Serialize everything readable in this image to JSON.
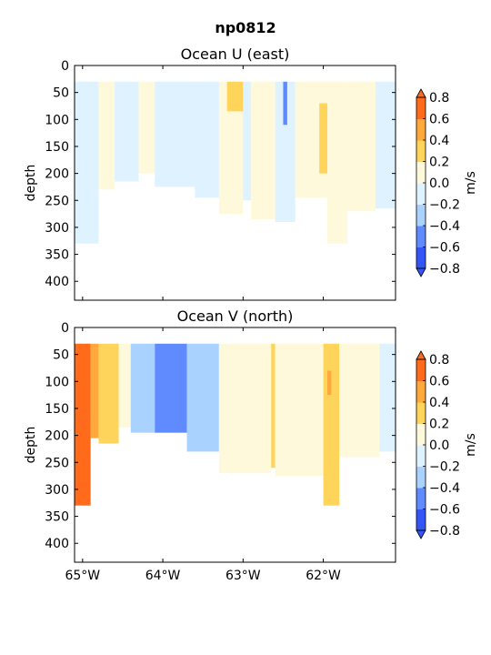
{
  "figure": {
    "title": "np0812"
  },
  "colors": [
    "#3355f5",
    "#5f8bff",
    "#a9d2ff",
    "#def2ff",
    "#fff9dc",
    "#ffd45b",
    "#ffa83b",
    "#ff6b1b"
  ],
  "chart_data": [
    {
      "type": "heatmap",
      "title": "Ocean U (east)",
      "xlabel": "",
      "ylabel": "depth",
      "xlim": [
        -65.1,
        -61.1
      ],
      "ylim": [
        435,
        0
      ],
      "xticks": [
        -65,
        -64,
        -63,
        -62
      ],
      "xticklabels": [
        "65°W",
        "64°W",
        "63°W",
        "62°W"
      ],
      "yticks": [
        0,
        50,
        100,
        150,
        200,
        250,
        300,
        350,
        400
      ],
      "yticklabels": [
        "0",
        "50",
        "100",
        "150",
        "200",
        "250",
        "300",
        "350",
        "400"
      ],
      "depth_top": 30,
      "colorbar": {
        "label": "m/s",
        "levels": [
          -0.8,
          -0.6,
          -0.4,
          -0.2,
          0.0,
          0.2,
          0.4,
          0.6,
          0.8
        ],
        "ticklabels": [
          "0.8",
          "0.6",
          "0.4",
          "0.2",
          "0.0",
          "−0.2",
          "−0.4",
          "−0.6",
          "−0.8"
        ],
        "extend": "both"
      },
      "bands": [
        {
          "x0": -65.1,
          "x1": -64.8,
          "value": -0.1,
          "bottom": 330
        },
        {
          "x0": -64.8,
          "x1": -64.6,
          "value": 0.1,
          "bottom": 230
        },
        {
          "x0": -64.6,
          "x1": -64.3,
          "value": -0.1,
          "bottom": 215
        },
        {
          "x0": -64.3,
          "x1": -64.1,
          "value": 0.1,
          "bottom": 200
        },
        {
          "x0": -64.1,
          "x1": -63.6,
          "value": -0.1,
          "bottom": 225
        },
        {
          "x0": -63.6,
          "x1": -63.3,
          "value": -0.1,
          "bottom": 245
        },
        {
          "x0": -63.3,
          "x1": -63.0,
          "value": 0.1,
          "bottom": 275
        },
        {
          "x0": -63.0,
          "x1": -62.9,
          "value": -0.1,
          "bottom": 250
        },
        {
          "x0": -62.9,
          "x1": -62.6,
          "value": 0.1,
          "bottom": 285
        },
        {
          "x0": -62.6,
          "x1": -62.35,
          "value": -0.1,
          "bottom": 290
        },
        {
          "x0": -62.35,
          "x1": -61.95,
          "value": 0.1,
          "bottom": 245
        },
        {
          "x0": -61.95,
          "x1": -61.7,
          "value": 0.1,
          "bottom": 330
        },
        {
          "x0": -61.7,
          "x1": -61.35,
          "value": 0.1,
          "bottom": 270
        },
        {
          "x0": -61.35,
          "x1": -61.1,
          "value": -0.1,
          "bottom": 265
        }
      ],
      "patches": [
        {
          "x0": -63.2,
          "x1": -63.0,
          "d0": 30,
          "d1": 85,
          "value": 0.3
        },
        {
          "x0": -62.05,
          "x1": -61.95,
          "d0": 70,
          "d1": 200,
          "value": 0.3
        },
        {
          "x0": -62.5,
          "x1": -62.45,
          "d0": 30,
          "d1": 110,
          "value": -0.5
        }
      ]
    },
    {
      "type": "heatmap",
      "title": "Ocean V (north)",
      "xlabel": "",
      "ylabel": "depth",
      "xlim": [
        -65.1,
        -61.1
      ],
      "ylim": [
        435,
        0
      ],
      "xticks": [
        -65,
        -64,
        -63,
        -62
      ],
      "xticklabels": [
        "65°W",
        "64°W",
        "63°W",
        "62°W"
      ],
      "yticks": [
        0,
        50,
        100,
        150,
        200,
        250,
        300,
        350,
        400
      ],
      "yticklabels": [
        "0",
        "50",
        "100",
        "150",
        "200",
        "250",
        "300",
        "350",
        "400"
      ],
      "depth_top": 30,
      "colorbar": {
        "label": "m/s",
        "levels": [
          -0.8,
          -0.6,
          -0.4,
          -0.2,
          0.0,
          0.2,
          0.4,
          0.6,
          0.8
        ],
        "ticklabels": [
          "0.8",
          "0.6",
          "0.4",
          "0.2",
          "0.0",
          "−0.2",
          "−0.4",
          "−0.6",
          "−0.8"
        ],
        "extend": "both"
      },
      "bands": [
        {
          "x0": -65.1,
          "x1": -64.9,
          "value": 0.7,
          "bottom": 330
        },
        {
          "x0": -64.9,
          "x1": -64.8,
          "value": 0.5,
          "bottom": 205
        },
        {
          "x0": -64.8,
          "x1": -64.55,
          "value": 0.3,
          "bottom": 215
        },
        {
          "x0": -64.55,
          "x1": -64.4,
          "value": 0.1,
          "bottom": 185
        },
        {
          "x0": -64.4,
          "x1": -64.1,
          "value": -0.3,
          "bottom": 195
        },
        {
          "x0": -64.1,
          "x1": -63.7,
          "value": -0.5,
          "bottom": 195
        },
        {
          "x0": -63.7,
          "x1": -63.3,
          "value": -0.3,
          "bottom": 230
        },
        {
          "x0": -63.3,
          "x1": -62.65,
          "value": 0.1,
          "bottom": 270
        },
        {
          "x0": -62.65,
          "x1": -62.6,
          "value": 0.3,
          "bottom": 260
        },
        {
          "x0": -62.6,
          "x1": -62.0,
          "value": 0.1,
          "bottom": 275
        },
        {
          "x0": -62.0,
          "x1": -61.8,
          "value": 0.3,
          "bottom": 330
        },
        {
          "x0": -61.8,
          "x1": -61.3,
          "value": 0.1,
          "bottom": 240
        },
        {
          "x0": -61.3,
          "x1": -61.1,
          "value": -0.1,
          "bottom": 230
        }
      ],
      "patches": [
        {
          "x0": -61.95,
          "x1": -61.9,
          "d0": 80,
          "d1": 125,
          "value": 0.5
        }
      ]
    }
  ]
}
